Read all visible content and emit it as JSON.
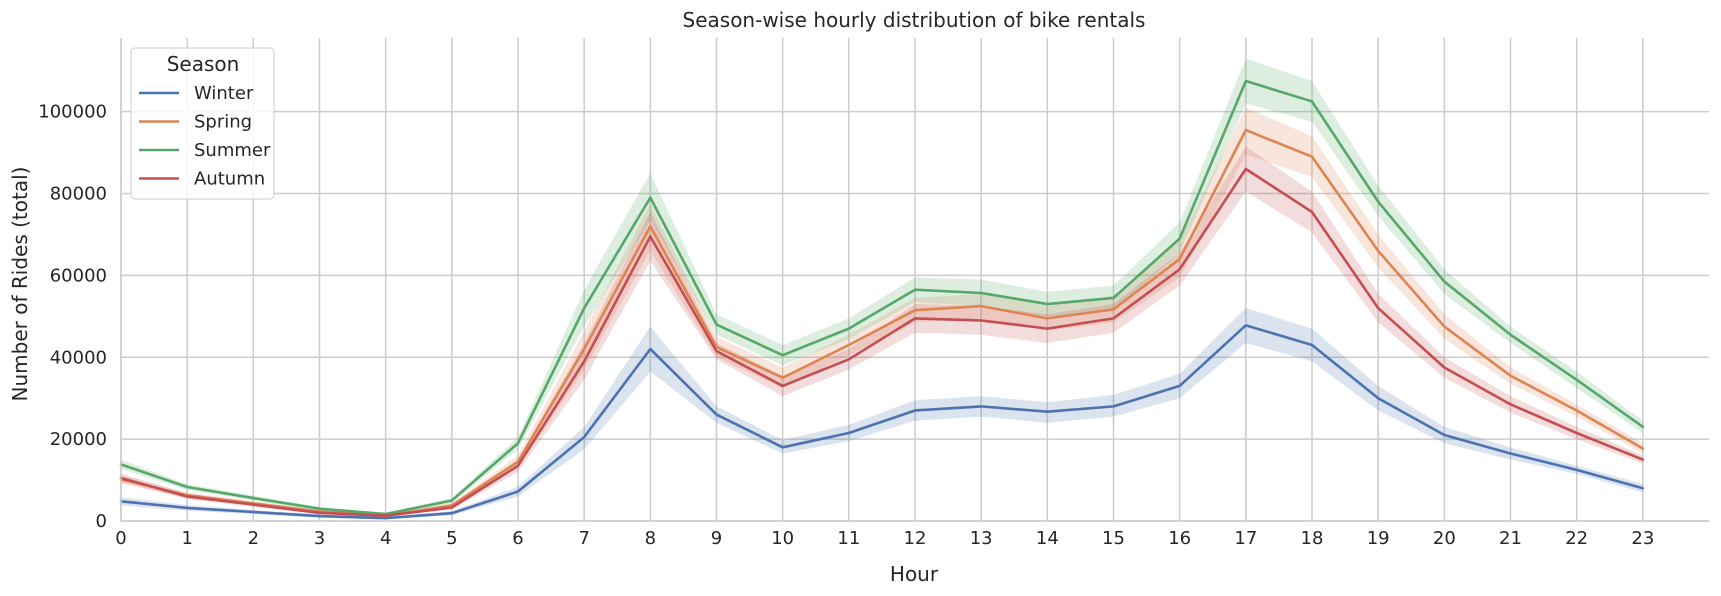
{
  "chart_data": {
    "type": "line",
    "title": "Season-wise hourly distribution of bike rentals",
    "xlabel": "Hour",
    "ylabel": "Number of Rides (total)",
    "x": [
      0,
      1,
      2,
      3,
      4,
      5,
      6,
      7,
      8,
      9,
      10,
      11,
      12,
      13,
      14,
      15,
      16,
      17,
      18,
      19,
      20,
      21,
      22,
      23
    ],
    "x_tick_labels": [
      "0",
      "1",
      "2",
      "3",
      "4",
      "5",
      "6",
      "7",
      "8",
      "9",
      "10",
      "11",
      "12",
      "13",
      "14",
      "15",
      "16",
      "17",
      "18",
      "19",
      "20",
      "21",
      "22",
      "23"
    ],
    "xlim": [
      0,
      24
    ],
    "ylim": [
      0,
      118000
    ],
    "y_ticks": [
      0,
      20000,
      40000,
      60000,
      80000,
      100000
    ],
    "y_tick_labels": [
      "0",
      "20000",
      "40000",
      "60000",
      "80000",
      "100000"
    ],
    "grid": true,
    "legend": {
      "title": "Season",
      "placement": "top-left"
    },
    "series": [
      {
        "name": "Winter",
        "color": "#4c72b0",
        "values": [
          4800,
          3200,
          2200,
          1200,
          700,
          1900,
          7200,
          20500,
          42000,
          26000,
          18000,
          21500,
          27000,
          28000,
          26700,
          28000,
          33000,
          47800,
          43000,
          30000,
          21000,
          16500,
          12500,
          8000
        ],
        "ci_lower": [
          3800,
          2500,
          1700,
          800,
          400,
          1400,
          6000,
          17500,
          36500,
          24000,
          16500,
          19500,
          24500,
          25500,
          24000,
          25500,
          30000,
          43500,
          39000,
          27000,
          19000,
          15000,
          11500,
          7000
        ],
        "ci_upper": [
          5800,
          3900,
          2700,
          1600,
          1000,
          2400,
          8400,
          23000,
          47500,
          28000,
          19800,
          23500,
          29500,
          30500,
          29000,
          30800,
          36000,
          52000,
          47000,
          33000,
          23000,
          18000,
          13500,
          9000
        ]
      },
      {
        "name": "Spring",
        "color": "#dd8452",
        "values": [
          10200,
          6300,
          4300,
          2300,
          1300,
          3800,
          14500,
          42000,
          72000,
          42500,
          35000,
          43000,
          51500,
          52500,
          49500,
          51700,
          64000,
          95500,
          89000,
          66000,
          47500,
          35500,
          27000,
          17700
        ],
        "ci_lower": [
          9200,
          5600,
          3800,
          1900,
          1000,
          3200,
          13000,
          37000,
          66000,
          40000,
          32500,
          40500,
          48500,
          49500,
          46500,
          48500,
          59500,
          89500,
          84000,
          62000,
          44500,
          33500,
          25500,
          16500
        ],
        "ci_upper": [
          11200,
          7000,
          4800,
          2700,
          1600,
          4400,
          16000,
          46500,
          77500,
          45000,
          37500,
          45500,
          54500,
          55500,
          52500,
          55000,
          68500,
          101000,
          94000,
          70000,
          50500,
          37500,
          28500,
          19000
        ]
      },
      {
        "name": "Summer",
        "color": "#55a868",
        "values": [
          13800,
          8300,
          5600,
          3000,
          1700,
          5000,
          19000,
          52000,
          79000,
          48000,
          40500,
          47000,
          56500,
          55700,
          53000,
          54500,
          69000,
          107500,
          102500,
          78000,
          58500,
          45500,
          34500,
          23000
        ],
        "ci_lower": [
          12700,
          7600,
          5000,
          2600,
          1400,
          4400,
          17500,
          47500,
          73500,
          45500,
          38000,
          44500,
          53500,
          52500,
          50000,
          51500,
          65500,
          102000,
          97500,
          74500,
          55500,
          43500,
          32500,
          21500
        ],
        "ci_upper": [
          15000,
          9000,
          6200,
          3400,
          2000,
          5600,
          20500,
          56500,
          85000,
          50500,
          43000,
          49500,
          59500,
          59000,
          56000,
          57500,
          73000,
          113000,
          107500,
          82000,
          61500,
          47500,
          36500,
          24500
        ]
      },
      {
        "name": "Autumn",
        "color": "#c44e52",
        "values": [
          10500,
          6000,
          4000,
          2000,
          1300,
          3300,
          13500,
          39000,
          69500,
          41500,
          33000,
          39500,
          49500,
          49000,
          47000,
          49500,
          61500,
          86000,
          75500,
          52000,
          37500,
          28500,
          21500,
          15000
        ],
        "ci_lower": [
          9500,
          5300,
          3500,
          1600,
          1000,
          2800,
          12000,
          34500,
          63500,
          39500,
          30500,
          37000,
          46000,
          45500,
          43500,
          46000,
          57500,
          80500,
          70500,
          48500,
          35000,
          26500,
          20000,
          14000
        ],
        "ci_upper": [
          11500,
          6700,
          4500,
          2400,
          1600,
          3800,
          15000,
          43500,
          75500,
          43500,
          35500,
          42000,
          53000,
          52500,
          50500,
          53000,
          65500,
          91500,
          80500,
          55500,
          40000,
          30500,
          23000,
          16000
        ]
      }
    ]
  }
}
